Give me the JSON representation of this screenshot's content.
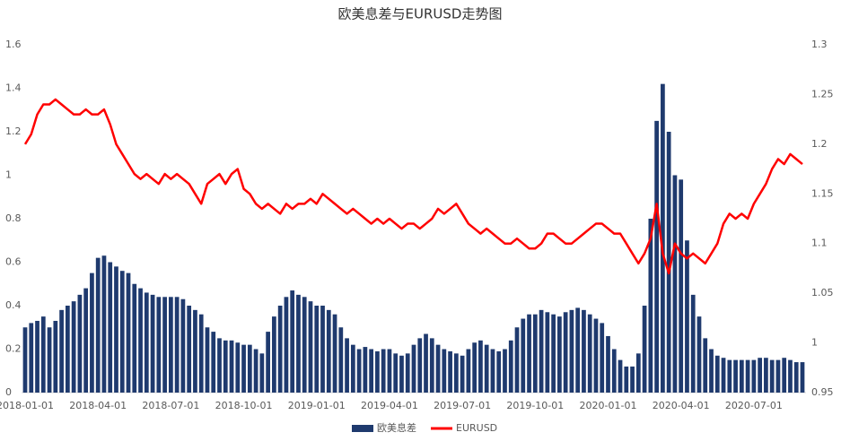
{
  "chart_data": {
    "type": "bar-line",
    "title": "欧美息差与EURUSD走势图",
    "categories": [
      "2018-01-01",
      null,
      null,
      null,
      null,
      null,
      null,
      null,
      null,
      null,
      null,
      null,
      "2018-04-01",
      null,
      null,
      null,
      null,
      null,
      null,
      null,
      null,
      null,
      null,
      null,
      "2018-07-01",
      null,
      null,
      null,
      null,
      null,
      null,
      null,
      null,
      null,
      null,
      null,
      "2018-10-01",
      null,
      null,
      null,
      null,
      null,
      null,
      null,
      null,
      null,
      null,
      null,
      "2019-01-01",
      null,
      null,
      null,
      null,
      null,
      null,
      null,
      null,
      null,
      null,
      null,
      "2019-04-01",
      null,
      null,
      null,
      null,
      null,
      null,
      null,
      null,
      null,
      null,
      null,
      "2019-07-01",
      null,
      null,
      null,
      null,
      null,
      null,
      null,
      null,
      null,
      null,
      null,
      "2019-10-01",
      null,
      null,
      null,
      null,
      null,
      null,
      null,
      null,
      null,
      null,
      null,
      "2020-01-01",
      null,
      null,
      null,
      null,
      null,
      null,
      null,
      null,
      null,
      null,
      null,
      "2020-04-01",
      null,
      null,
      null,
      null,
      null,
      null,
      null,
      null,
      null,
      null,
      null,
      "2020-07-01",
      null,
      null,
      null,
      null,
      null,
      null,
      null,
      null
    ],
    "series": [
      {
        "name": "欧美息差",
        "color": "#1f3a6e",
        "kind": "bar",
        "values": [
          0.3,
          0.32,
          0.33,
          0.35,
          0.3,
          0.33,
          0.38,
          0.4,
          0.42,
          0.45,
          0.48,
          0.55,
          0.62,
          0.63,
          0.6,
          0.58,
          0.56,
          0.55,
          0.5,
          0.48,
          0.46,
          0.45,
          0.44,
          0.44,
          0.44,
          0.44,
          0.43,
          0.4,
          0.38,
          0.36,
          0.3,
          0.28,
          0.25,
          0.24,
          0.24,
          0.23,
          0.22,
          0.22,
          0.2,
          0.18,
          0.28,
          0.35,
          0.4,
          0.44,
          0.47,
          0.45,
          0.44,
          0.42,
          0.4,
          0.4,
          0.38,
          0.36,
          0.3,
          0.25,
          0.22,
          0.2,
          0.21,
          0.2,
          0.19,
          0.2,
          0.2,
          0.18,
          0.17,
          0.18,
          0.22,
          0.25,
          0.27,
          0.25,
          0.22,
          0.2,
          0.19,
          0.18,
          0.17,
          0.2,
          0.23,
          0.24,
          0.22,
          0.2,
          0.19,
          0.2,
          0.24,
          0.3,
          0.34,
          0.36,
          0.36,
          0.38,
          0.37,
          0.36,
          0.35,
          0.37,
          0.38,
          0.39,
          0.38,
          0.36,
          0.34,
          0.32,
          0.26,
          0.2,
          0.15,
          0.12,
          0.12,
          0.18,
          0.4,
          0.8,
          1.25,
          1.42,
          1.2,
          1.0,
          0.98,
          0.7,
          0.45,
          0.35,
          0.25,
          0.2,
          0.17,
          0.16,
          0.15,
          0.15,
          0.15,
          0.15,
          0.15,
          0.16,
          0.16,
          0.15,
          0.15,
          0.16,
          0.15,
          0.14,
          0.14
        ]
      },
      {
        "name": "EURUSD",
        "color": "#ff0000",
        "kind": "line",
        "axis": "y2",
        "values": [
          1.2,
          1.21,
          1.23,
          1.24,
          1.24,
          1.245,
          1.24,
          1.235,
          1.23,
          1.23,
          1.235,
          1.23,
          1.23,
          1.235,
          1.22,
          1.2,
          1.19,
          1.18,
          1.17,
          1.165,
          1.17,
          1.165,
          1.16,
          1.17,
          1.165,
          1.17,
          1.165,
          1.16,
          1.15,
          1.14,
          1.16,
          1.165,
          1.17,
          1.16,
          1.17,
          1.175,
          1.155,
          1.15,
          1.14,
          1.135,
          1.14,
          1.135,
          1.13,
          1.14,
          1.135,
          1.14,
          1.14,
          1.145,
          1.14,
          1.15,
          1.145,
          1.14,
          1.135,
          1.13,
          1.135,
          1.13,
          1.125,
          1.12,
          1.125,
          1.12,
          1.125,
          1.12,
          1.115,
          1.12,
          1.12,
          1.115,
          1.12,
          1.125,
          1.135,
          1.13,
          1.135,
          1.14,
          1.13,
          1.12,
          1.115,
          1.11,
          1.115,
          1.11,
          1.105,
          1.1,
          1.1,
          1.105,
          1.1,
          1.095,
          1.095,
          1.1,
          1.11,
          1.11,
          1.105,
          1.1,
          1.1,
          1.105,
          1.11,
          1.115,
          1.12,
          1.12,
          1.115,
          1.11,
          1.11,
          1.1,
          1.09,
          1.08,
          1.09,
          1.105,
          1.14,
          1.09,
          1.07,
          1.1,
          1.09,
          1.085,
          1.09,
          1.085,
          1.08,
          1.09,
          1.1,
          1.12,
          1.13,
          1.125,
          1.13,
          1.125,
          1.14,
          1.15,
          1.16,
          1.175,
          1.185,
          1.18,
          1.19,
          1.185,
          1.18
        ]
      }
    ],
    "ylim": [
      0,
      1.6
    ],
    "yticks": [
      0,
      0.2,
      0.4,
      0.6,
      0.8,
      1,
      1.2,
      1.4,
      1.6
    ],
    "y2lim": [
      0.95,
      1.3
    ],
    "y2ticks": [
      0.95,
      1,
      1.05,
      1.1,
      1.15,
      1.2,
      1.25,
      1.3
    ],
    "legend": "bottom"
  }
}
